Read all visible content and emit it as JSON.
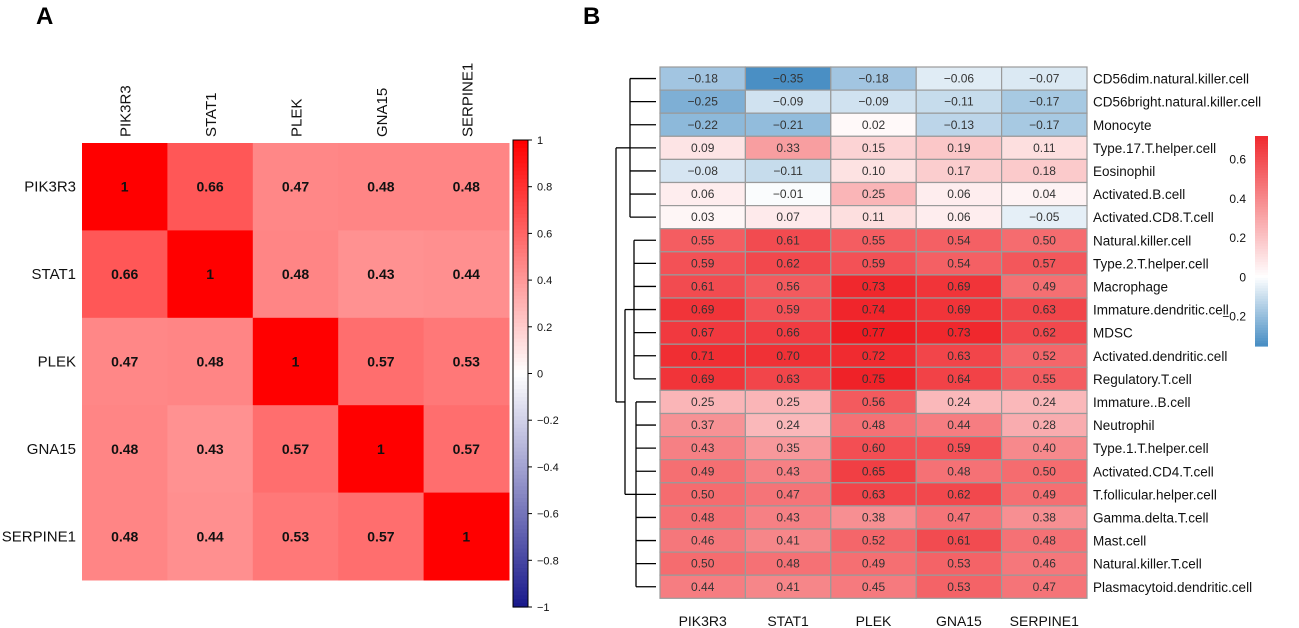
{
  "panels": {
    "a_label": "A",
    "b_label": "B"
  },
  "chart_data": [
    {
      "type": "heatmap",
      "title": "",
      "genes": [
        "PIK3R3",
        "STAT1",
        "PLEK",
        "GNA15",
        "SERPINE1"
      ],
      "matrix": [
        [
          1,
          0.66,
          0.47,
          0.48,
          0.48
        ],
        [
          0.66,
          1,
          0.48,
          0.43,
          0.44
        ],
        [
          0.47,
          0.48,
          1,
          0.57,
          0.53
        ],
        [
          0.48,
          0.43,
          0.57,
          1,
          0.57
        ],
        [
          0.48,
          0.44,
          0.53,
          0.57,
          1
        ]
      ],
      "labels": [
        [
          "1",
          "0.66",
          "0.47",
          "0.48",
          "0.48"
        ],
        [
          "0.66",
          "1",
          "0.48",
          "0.43",
          "0.44"
        ],
        [
          "0.47",
          "0.48",
          "1",
          "0.57",
          "0.53"
        ],
        [
          "0.48",
          "0.43",
          "0.57",
          "1",
          "0.57"
        ],
        [
          "0.48",
          "0.44",
          "0.53",
          "0.57",
          "1"
        ]
      ],
      "colorbar": {
        "range": [
          -1,
          1
        ],
        "ticks": [
          1,
          0.8,
          0.6,
          0.4,
          0.2,
          0,
          -0.2,
          -0.4,
          -0.6,
          -0.8,
          -1
        ],
        "tick_labels": [
          "1",
          "0.8",
          "0.6",
          "0.4",
          "0.2",
          "0",
          "−0.2",
          "−0.4",
          "−0.6",
          "−0.8",
          "−1"
        ],
        "colors": {
          "low": "#1a1a8c",
          "mid": "#ffffff",
          "high": "#ff0000"
        }
      }
    },
    {
      "type": "heatmap",
      "title": "",
      "genes": [
        "PIK3R3",
        "STAT1",
        "PLEK",
        "GNA15",
        "SERPINE1"
      ],
      "cell_types": [
        "CD56dim.natural.killer.cell",
        "CD56bright.natural.killer.cell",
        "Monocyte",
        "Type.17.T.helper.cell",
        "Eosinophil",
        "Activated.B.cell",
        "Activated.CD8.T.cell",
        "Natural.killer.cell",
        "Type.2.T.helper.cell",
        "Macrophage",
        "Immature.dendritic.cell",
        "MDSC",
        "Activated.dendritic.cell",
        "Regulatory.T.cell",
        "Immature..B.cell",
        "Neutrophil",
        "Type.1.T.helper.cell",
        "Activated.CD4.T.cell",
        "T.follicular.helper.cell",
        "Gamma.delta.T.cell",
        "Mast.cell",
        "Natural.killer.T.cell",
        "Plasmacytoid.dendritic.cell"
      ],
      "labels": [
        [
          "−0.18",
          "−0.35",
          "−0.18",
          "−0.06",
          "−0.07"
        ],
        [
          "−0.25",
          "−0.09",
          "−0.09",
          "−0.11",
          "−0.17"
        ],
        [
          "−0.22",
          "−0.21",
          "0.02",
          "−0.13",
          "−0.17"
        ],
        [
          "0.09",
          "0.33",
          "0.15",
          "0.19",
          "0.11"
        ],
        [
          "−0.08",
          "−0.11",
          "0.10",
          "0.17",
          "0.18"
        ],
        [
          "0.06",
          "−0.01",
          "0.25",
          "0.06",
          "0.04"
        ],
        [
          "0.03",
          "0.07",
          "0.11",
          "0.06",
          "−0.05"
        ],
        [
          "0.55",
          "0.61",
          "0.55",
          "0.54",
          "0.50"
        ],
        [
          "0.59",
          "0.62",
          "0.59",
          "0.54",
          "0.57"
        ],
        [
          "0.61",
          "0.56",
          "0.73",
          "0.69",
          "0.49"
        ],
        [
          "0.69",
          "0.59",
          "0.74",
          "0.69",
          "0.63"
        ],
        [
          "0.67",
          "0.66",
          "0.77",
          "0.73",
          "0.62"
        ],
        [
          "0.71",
          "0.70",
          "0.72",
          "0.63",
          "0.52"
        ],
        [
          "0.69",
          "0.63",
          "0.75",
          "0.64",
          "0.55"
        ],
        [
          "0.25",
          "0.25",
          "0.56",
          "0.24",
          "0.24"
        ],
        [
          "0.37",
          "0.24",
          "0.48",
          "0.44",
          "0.28"
        ],
        [
          "0.43",
          "0.35",
          "0.60",
          "0.59",
          "0.40"
        ],
        [
          "0.49",
          "0.43",
          "0.65",
          "0.48",
          "0.50"
        ],
        [
          "0.50",
          "0.47",
          "0.63",
          "0.62",
          "0.49"
        ],
        [
          "0.48",
          "0.43",
          "0.38",
          "0.47",
          "0.38"
        ],
        [
          "0.46",
          "0.41",
          "0.52",
          "0.61",
          "0.48"
        ],
        [
          "0.50",
          "0.48",
          "0.49",
          "0.53",
          "0.46"
        ],
        [
          "0.44",
          "0.41",
          "0.45",
          "0.53",
          "0.47"
        ]
      ],
      "colorbar": {
        "range": [
          -0.35,
          0.77
        ],
        "ticks": [
          0.6,
          0.4,
          0.2,
          0,
          -0.2
        ],
        "tick_labels": [
          "0.6",
          "0.4",
          "0.2",
          "0",
          "−0.2"
        ],
        "colors": {
          "low": "#4a8fc4",
          "mid": "#ffffff",
          "high": "#ef1c22"
        }
      },
      "dendrogram": "rows"
    }
  ]
}
